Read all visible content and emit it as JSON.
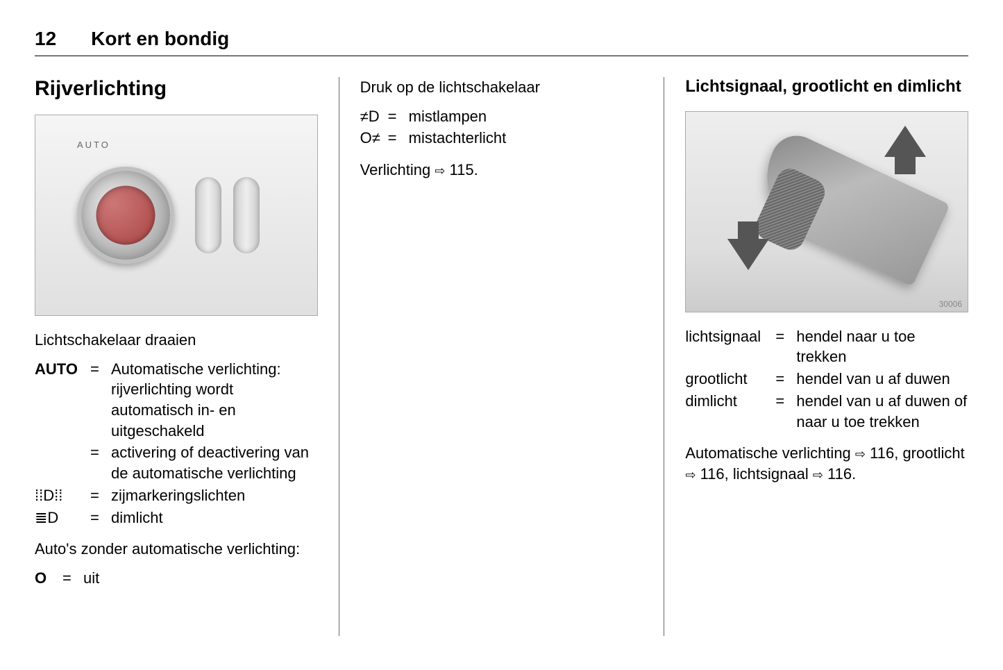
{
  "page_number": "12",
  "chapter_title": "Kort en bondig",
  "col1": {
    "section_title": "Rijverlichting",
    "figure1_dial_label": "AUTO",
    "intro_text": "Lichtschakelaar draaien",
    "defs": [
      {
        "term": "AUTO",
        "term_bold": true,
        "desc": "Automatische verlichting: rijverlichting wordt automatisch in- en uitgeschakeld"
      },
      {
        "term": "",
        "term_bold": false,
        "desc": "activering of deactivering van de automatische verlichting"
      },
      {
        "term": "⁞⁞D⁞⁞",
        "term_bold": false,
        "desc": "zijmarkeringslichten"
      },
      {
        "term": "≣D",
        "term_bold": false,
        "desc": "dimlicht"
      }
    ],
    "post_text": "Auto's zonder automatische verlichting:",
    "defs2": [
      {
        "term": "O",
        "term_bold": true,
        "desc": "uit"
      }
    ]
  },
  "col2": {
    "intro_text": "Druk op de lichtschakelaar",
    "defs": [
      {
        "term": "≠D",
        "desc": "mistlampen"
      },
      {
        "term": "O≠",
        "desc": "mistachterlicht"
      }
    ],
    "ref_text_prefix": "Verlichting ",
    "ref_page": "115",
    "ref_text_suffix": "."
  },
  "col3": {
    "section_title": "Lichtsignaal, grootlicht en dimlicht",
    "figure_id": "30006",
    "defs": [
      {
        "term": "lichtsignaal",
        "desc": "hendel naar u toe trekken"
      },
      {
        "term": "grootlicht",
        "desc": "hendel van u af duwen"
      },
      {
        "term": "dimlicht",
        "desc": "hendel van u af duwen of naar u toe trekken"
      }
    ],
    "refs": {
      "r1_label": "Automatische verlichting ",
      "r1_page": "116",
      "r2_label": "grootlicht ",
      "r2_page": "116",
      "r3_label": "lichtsignaal ",
      "r3_page": "116"
    }
  },
  "ref_arrow_glyph": "⇨"
}
